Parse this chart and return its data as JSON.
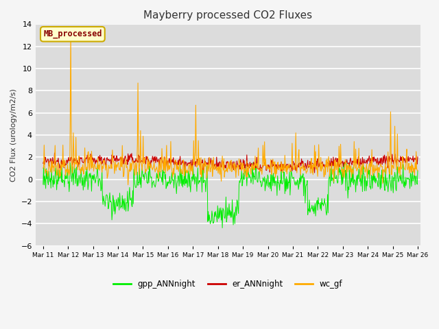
{
  "title": "Mayberry processed CO2 Fluxes",
  "ylabel": "CO2 Flux (urology/m2/s)",
  "ylim": [
    -6,
    14
  ],
  "yticks": [
    -6,
    -4,
    -2,
    0,
    2,
    4,
    6,
    8,
    10,
    12,
    14
  ],
  "n_points": 720,
  "start_day": 11,
  "end_day": 26,
  "colors": {
    "gpp": "#00ee00",
    "er": "#cc0000",
    "wc": "#ffaa00"
  },
  "legend_labels": [
    "gpp_ANNnight",
    "er_ANNnight",
    "wc_gf"
  ],
  "annotation_text": "MB_processed",
  "annotation_color": "#880000",
  "annotation_bg": "#ffffcc",
  "annotation_border": "#ccaa00",
  "plot_bg_color": "#dcdcdc",
  "fig_bg_color": "#f5f5f5",
  "grid_color": "#ffffff",
  "seed": 12345
}
